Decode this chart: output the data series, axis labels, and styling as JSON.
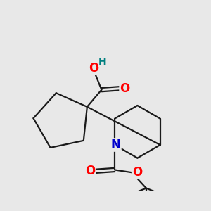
{
  "bg_color": "#e8e8e8",
  "bond_color": "#1a1a1a",
  "bond_width": 1.6,
  "atom_colors": {
    "O": "#ff0000",
    "N": "#0000cc",
    "H": "#008080",
    "C": "#1a1a1a"
  },
  "font_size_atom": 10,
  "fig_size": [
    3.0,
    3.0
  ],
  "dpi": 100
}
